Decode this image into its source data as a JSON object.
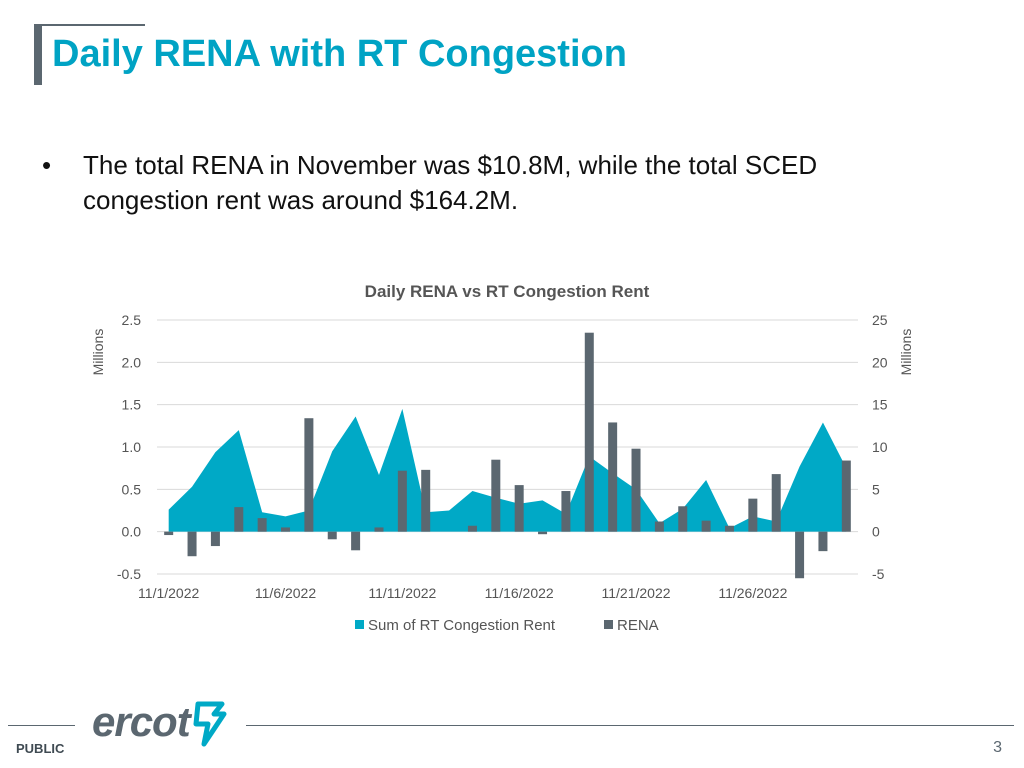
{
  "header": {
    "title": "Daily RENA with RT Congestion"
  },
  "bullet": {
    "symbol": "•",
    "text": "The total RENA in November was $10.8M, while the total SCED congestion rent was around $164.2M."
  },
  "chart_data": {
    "type": "area+bar",
    "title": "Daily RENA vs RT Congestion Rent",
    "x": [
      "11/1/2022",
      "11/2/2022",
      "11/3/2022",
      "11/4/2022",
      "11/5/2022",
      "11/6/2022",
      "11/7/2022",
      "11/8/2022",
      "11/9/2022",
      "11/10/2022",
      "11/11/2022",
      "11/12/2022",
      "11/13/2022",
      "11/14/2022",
      "11/15/2022",
      "11/16/2022",
      "11/17/2022",
      "11/18/2022",
      "11/19/2022",
      "11/20/2022",
      "11/21/2022",
      "11/22/2022",
      "11/23/2022",
      "11/24/2022",
      "11/25/2022",
      "11/26/2022",
      "11/27/2022",
      "11/28/2022",
      "11/29/2022",
      "11/30/2022"
    ],
    "x_tick_labels": [
      "11/1/2022",
      "11/6/2022",
      "11/11/2022",
      "11/16/2022",
      "11/21/2022",
      "11/26/2022"
    ],
    "left_axis": {
      "label": "Millions",
      "ylim": [
        -0.5,
        2.5
      ],
      "ticks": [
        "2.5",
        "2.0",
        "1.5",
        "1.0",
        "0.5",
        "0.0",
        "-0.5"
      ]
    },
    "right_axis": {
      "label": "Millions",
      "ylim": [
        -5,
        25
      ],
      "ticks": [
        "25",
        "20",
        "15",
        "10",
        "5",
        "0",
        "-5"
      ]
    },
    "grid": true,
    "legend_position": "bottom",
    "series": [
      {
        "name": "Sum of RT Congestion Rent",
        "type": "area",
        "axis": "right",
        "color": "#00a9c6",
        "values": [
          2.6,
          5.3,
          9.4,
          12.0,
          2.3,
          1.8,
          2.5,
          9.5,
          13.6,
          6.7,
          14.5,
          2.3,
          2.5,
          4.8,
          4.0,
          3.3,
          3.7,
          2.1,
          8.9,
          6.9,
          5.0,
          1.0,
          2.7,
          6.1,
          0.4,
          1.8,
          1.2,
          7.7,
          12.9,
          7.5
        ]
      },
      {
        "name": "RENA",
        "type": "bar",
        "axis": "left",
        "color": "#5b6770",
        "values": [
          -0.04,
          -0.29,
          -0.17,
          0.29,
          0.16,
          0.05,
          1.34,
          -0.09,
          -0.22,
          0.05,
          0.72,
          0.73,
          0.0,
          0.07,
          0.85,
          0.55,
          -0.03,
          0.48,
          2.35,
          1.29,
          0.98,
          0.12,
          0.3,
          0.13,
          0.07,
          0.39,
          0.68,
          -0.55,
          -0.23,
          0.84
        ]
      }
    ]
  },
  "footer": {
    "label": "PUBLIC",
    "page_number": "3",
    "logo_text": "ercot"
  }
}
